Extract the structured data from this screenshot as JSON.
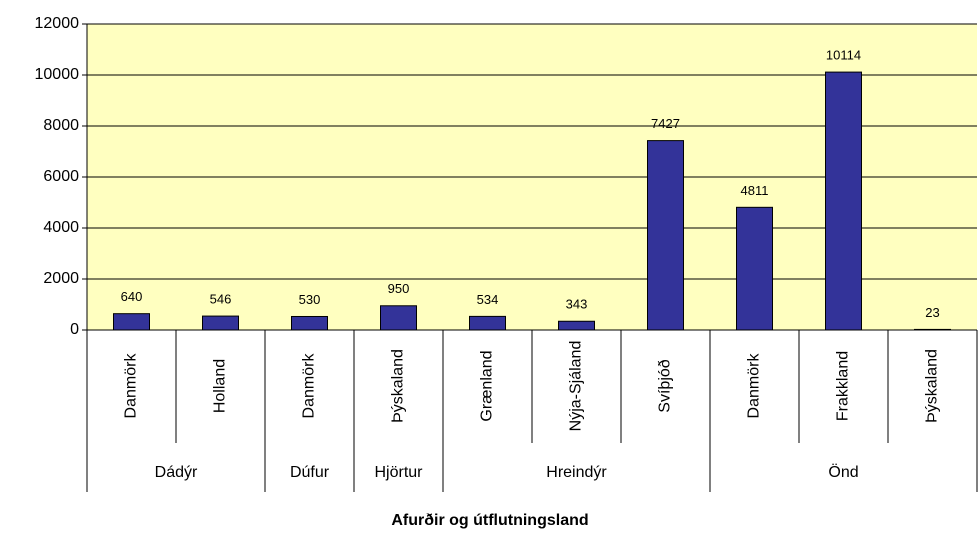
{
  "chart_data": {
    "type": "bar",
    "x_label": "Afurðir og útflutningsland",
    "categories": [
      "Danmörk",
      "Holland",
      "Danmörk",
      "Þýskaland",
      "Grænland",
      "Nýja-Sjáland",
      "Svíþjóð",
      "Danmörk",
      "Frakkland",
      "Þýskaland"
    ],
    "values": [
      640,
      546,
      530,
      950,
      534,
      343,
      7427,
      4811,
      10114,
      23
    ],
    "groups": [
      {
        "name": "Dádýr",
        "span": 2
      },
      {
        "name": "Dúfur",
        "span": 1
      },
      {
        "name": "Hjörtur",
        "span": 1
      },
      {
        "name": "Hreindýr",
        "span": 3
      },
      {
        "name": "Önd",
        "span": 3
      }
    ],
    "color": "#333399",
    "background": "#ffffc0",
    "ylim": [
      0,
      12000
    ],
    "yticks": [
      0,
      2000,
      4000,
      6000,
      8000,
      10000,
      12000
    ],
    "grid": true
  }
}
